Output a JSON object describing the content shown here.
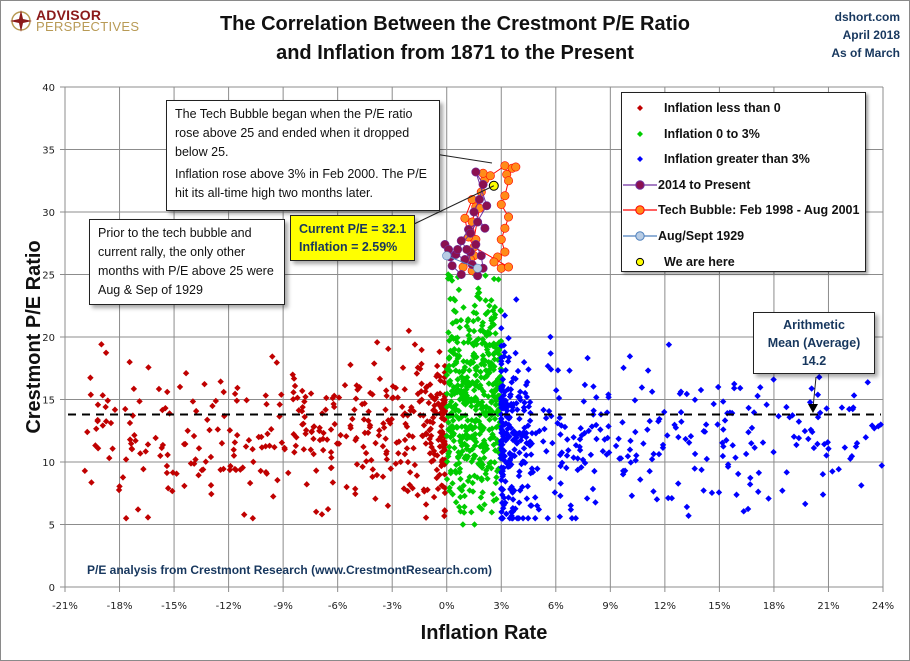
{
  "header": {
    "logo": {
      "line1": "ADVISOR",
      "line2": "PERSPECTIVES"
    },
    "title_line1": "The Correlation Between the Crestmont P/E Ratio",
    "title_line2": "and Inflation from 1871 to the Present",
    "source_site": "dshort.com",
    "source_date": "April 2018",
    "source_asof": "As of March"
  },
  "annotations": {
    "tech_note_p1": "The Tech Bubble began when the P/E ratio rose above 25 and ended when it dropped below 25.",
    "tech_note_p2": "Inflation rose above 3% in Feb 2000.  The P/E hit its all-time high two months later.",
    "prior_note": "Prior to the tech bubble and current rally, the only other months with P/E above 25 were Aug & Sep of 1929",
    "current_line1": "Current P/E = 32.1",
    "current_line2": "Inflation = 2.59%",
    "mean_line1": "Arithmetic",
    "mean_line2": "Mean (Average)",
    "mean_line3": "14.2",
    "footnote": "P/E analysis from Crestmont Research (www.CrestmontResearch.com)"
  },
  "chart_data": {
    "type": "scatter",
    "title": "The Correlation Between the Crestmont P/E Ratio and Inflation from 1871 to the Present",
    "xlabel": "Inflation Rate",
    "ylabel": "Crestmont P/E  Ratio",
    "xlim": [
      -21,
      24
    ],
    "ylim": [
      0,
      40
    ],
    "x_unit": "%",
    "x_ticks": [
      "-21%",
      "-18%",
      "-15%",
      "-12%",
      "-9%",
      "-6%",
      "-3%",
      "0%",
      "3%",
      "6%",
      "9%",
      "12%",
      "15%",
      "18%",
      "21%",
      "24%"
    ],
    "y_ticks": [
      "0",
      "5",
      "10",
      "15",
      "20",
      "25",
      "30",
      "35",
      "40"
    ],
    "grid": true,
    "legend_position": "top-right",
    "reference_line": {
      "label": "Arithmetic Mean (Average)",
      "y": 14.2,
      "style": "dashed"
    },
    "legend": [
      {
        "name": "Inflation less than 0",
        "color": "#c00000",
        "marker": "diamond"
      },
      {
        "name": "Inflation  0 to 3%",
        "color": "#00cc00",
        "marker": "diamond"
      },
      {
        "name": "Inflation greater than 3%",
        "color": "#0000ff",
        "marker": "diamond"
      },
      {
        "name": "2014 to Present",
        "color": "#8b1050",
        "marker": "circle-line",
        "line_color": "#7030a0"
      },
      {
        "name": "Tech Bubble: Feb 1998 - Aug 2001",
        "color": "#ff8c1a",
        "marker": "circle-line",
        "line_color": "#ff0000"
      },
      {
        "name": "Aug/Sept 1929",
        "color": "#b8cce4",
        "marker": "circle-line",
        "line_color": "#4f81bd"
      },
      {
        "name": "We are here",
        "color": "#ffff00",
        "marker": "circle"
      }
    ],
    "scatter_clusters": [
      {
        "series": "Inflation less than 0",
        "color": "#c00000",
        "count": 420,
        "x_range": [
          -20,
          -0.1
        ],
        "x_bias": 2.2,
        "y_center": 12.5,
        "y_spread": 3.0
      },
      {
        "series": "Inflation  0 to 3%",
        "color": "#00cc00",
        "count": 480,
        "x_range": [
          0,
          3
        ],
        "x_bias": 1.0,
        "y_center": 15,
        "y_spread": 4.5,
        "y_range": [
          5,
          25
        ]
      },
      {
        "series": "Inflation greater than 3%",
        "color": "#0000ff",
        "count": 470,
        "x_range": [
          3,
          24
        ],
        "x_bias": 2.6,
        "y_center": 12,
        "y_spread": 3.8,
        "y_range": [
          5.5,
          23
        ]
      }
    ],
    "series": [
      {
        "name": "Tech Bubble: Feb 1998 - Aug 2001",
        "points": [
          [
            1.4,
            25.3
          ],
          [
            1.5,
            26.5
          ],
          [
            1.6,
            27.8
          ],
          [
            1.4,
            29.2
          ],
          [
            1.6,
            30.4
          ],
          [
            1.9,
            31.6
          ],
          [
            2.1,
            32.6
          ],
          [
            2.0,
            33.1
          ],
          [
            2.4,
            32.9
          ],
          [
            3.2,
            33.7
          ],
          [
            3.6,
            33.5
          ],
          [
            3.8,
            33.6
          ],
          [
            3.3,
            33.0
          ],
          [
            3.4,
            32.5
          ],
          [
            3.2,
            31.3
          ],
          [
            3.0,
            30.6
          ],
          [
            3.4,
            29.6
          ],
          [
            3.2,
            28.7
          ],
          [
            3.0,
            27.8
          ],
          [
            3.2,
            26.8
          ],
          [
            2.8,
            26.4
          ],
          [
            2.6,
            26.0
          ],
          [
            3.0,
            25.5
          ],
          [
            3.4,
            25.6
          ],
          [
            1.5,
            27.2
          ],
          [
            1.2,
            28.0
          ],
          [
            1.0,
            29.5
          ],
          [
            1.4,
            31.0
          ],
          [
            1.8,
            30.3
          ],
          [
            1.3,
            26.2
          ],
          [
            0.9,
            25.6
          ]
        ]
      },
      {
        "name": "2014 to Present",
        "points": [
          [
            0.8,
            25.0
          ],
          [
            0.3,
            25.7
          ],
          [
            0.2,
            26.4
          ],
          [
            -0.1,
            27.4
          ],
          [
            0.1,
            27.0
          ],
          [
            0.5,
            26.6
          ],
          [
            1.0,
            26.2
          ],
          [
            1.3,
            26.8
          ],
          [
            1.6,
            27.4
          ],
          [
            1.9,
            26.5
          ],
          [
            2.0,
            25.5
          ],
          [
            1.7,
            24.9
          ],
          [
            1.4,
            25.8
          ],
          [
            1.1,
            27.0
          ],
          [
            0.8,
            27.7
          ],
          [
            1.2,
            28.6
          ],
          [
            1.7,
            29.2
          ],
          [
            2.1,
            28.7
          ],
          [
            1.5,
            30.0
          ],
          [
            1.8,
            31.0
          ],
          [
            2.0,
            32.2
          ],
          [
            1.6,
            33.2
          ],
          [
            2.2,
            30.5
          ],
          [
            1.3,
            28.3
          ],
          [
            0.6,
            27.0
          ]
        ]
      },
      {
        "name": "Aug/Sept 1929",
        "points": [
          [
            0.0,
            26.5
          ],
          [
            1.7,
            25.5
          ]
        ]
      },
      {
        "name": "We are here",
        "points": [
          [
            2.59,
            32.1
          ]
        ]
      }
    ]
  }
}
